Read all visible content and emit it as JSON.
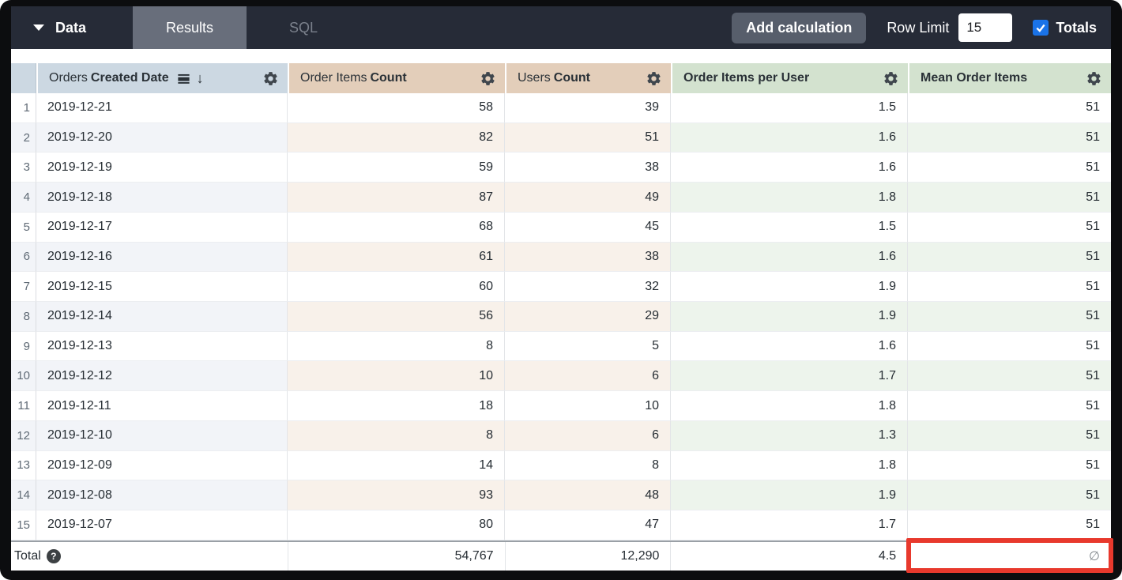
{
  "toolbar": {
    "data_label": "Data",
    "tabs": [
      {
        "label": "Results",
        "active": true
      },
      {
        "label": "SQL",
        "active": false
      }
    ],
    "add_calculation_label": "Add calculation",
    "row_limit_label": "Row Limit",
    "row_limit_value": "15",
    "totals_label": "Totals",
    "totals_checked": true
  },
  "table": {
    "columns": [
      {
        "prefix": "Orders",
        "bold": "Created Date",
        "type": "dimension",
        "sorted": "descending",
        "icons": [
          "calendar-view-day-icon",
          "arrow-down-icon",
          "gear-icon"
        ]
      },
      {
        "prefix": "Order Items",
        "bold": "Count",
        "type": "measure",
        "icons": [
          "gear-icon"
        ]
      },
      {
        "prefix": "Users",
        "bold": "Count",
        "type": "measure",
        "icons": [
          "gear-icon"
        ]
      },
      {
        "prefix": "",
        "bold": "Order Items per User",
        "type": "table_calculation",
        "icons": [
          "gear-icon"
        ]
      },
      {
        "prefix": "",
        "bold": "Mean Order Items",
        "type": "table_calculation",
        "icons": [
          "gear-icon"
        ]
      }
    ],
    "rows": [
      {
        "date": "2019-12-21",
        "order_items_count": "58",
        "users_count": "39",
        "order_items_per_user": "1.5",
        "mean_order_items": "51"
      },
      {
        "date": "2019-12-20",
        "order_items_count": "82",
        "users_count": "51",
        "order_items_per_user": "1.6",
        "mean_order_items": "51"
      },
      {
        "date": "2019-12-19",
        "order_items_count": "59",
        "users_count": "38",
        "order_items_per_user": "1.6",
        "mean_order_items": "51"
      },
      {
        "date": "2019-12-18",
        "order_items_count": "87",
        "users_count": "49",
        "order_items_per_user": "1.8",
        "mean_order_items": "51"
      },
      {
        "date": "2019-12-17",
        "order_items_count": "68",
        "users_count": "45",
        "order_items_per_user": "1.5",
        "mean_order_items": "51"
      },
      {
        "date": "2019-12-16",
        "order_items_count": "61",
        "users_count": "38",
        "order_items_per_user": "1.6",
        "mean_order_items": "51"
      },
      {
        "date": "2019-12-15",
        "order_items_count": "60",
        "users_count": "32",
        "order_items_per_user": "1.9",
        "mean_order_items": "51"
      },
      {
        "date": "2019-12-14",
        "order_items_count": "56",
        "users_count": "29",
        "order_items_per_user": "1.9",
        "mean_order_items": "51"
      },
      {
        "date": "2019-12-13",
        "order_items_count": "8",
        "users_count": "5",
        "order_items_per_user": "1.6",
        "mean_order_items": "51"
      },
      {
        "date": "2019-12-12",
        "order_items_count": "10",
        "users_count": "6",
        "order_items_per_user": "1.7",
        "mean_order_items": "51"
      },
      {
        "date": "2019-12-11",
        "order_items_count": "18",
        "users_count": "10",
        "order_items_per_user": "1.8",
        "mean_order_items": "51"
      },
      {
        "date": "2019-12-10",
        "order_items_count": "8",
        "users_count": "6",
        "order_items_per_user": "1.3",
        "mean_order_items": "51"
      },
      {
        "date": "2019-12-09",
        "order_items_count": "14",
        "users_count": "8",
        "order_items_per_user": "1.8",
        "mean_order_items": "51"
      },
      {
        "date": "2019-12-08",
        "order_items_count": "93",
        "users_count": "48",
        "order_items_per_user": "1.9",
        "mean_order_items": "51"
      },
      {
        "date": "2019-12-07",
        "order_items_count": "80",
        "users_count": "47",
        "order_items_per_user": "1.7",
        "mean_order_items": "51"
      }
    ],
    "total": {
      "label": "Total",
      "help_icon": "?",
      "order_items_count": "54,767",
      "users_count": "12,290",
      "order_items_per_user": "4.5",
      "mean_order_items": "∅"
    }
  },
  "annotation": {
    "shape": "red-box",
    "target": "total-mean-order-items-cell",
    "color": "#e8392d"
  },
  "colors": {
    "topbar_bg": "#262b37",
    "active_tab_bg": "#686e7b",
    "header_dimension_bg": "#ccd8e2",
    "header_measure_bg": "#e3ceba",
    "header_calc_bg": "#d3e2cf",
    "stripe_dimension": "#f2f4f8",
    "stripe_measure": "#f8f1ea",
    "stripe_calc": "#edf4ec",
    "checkbox_blue": "#1a73e8"
  }
}
